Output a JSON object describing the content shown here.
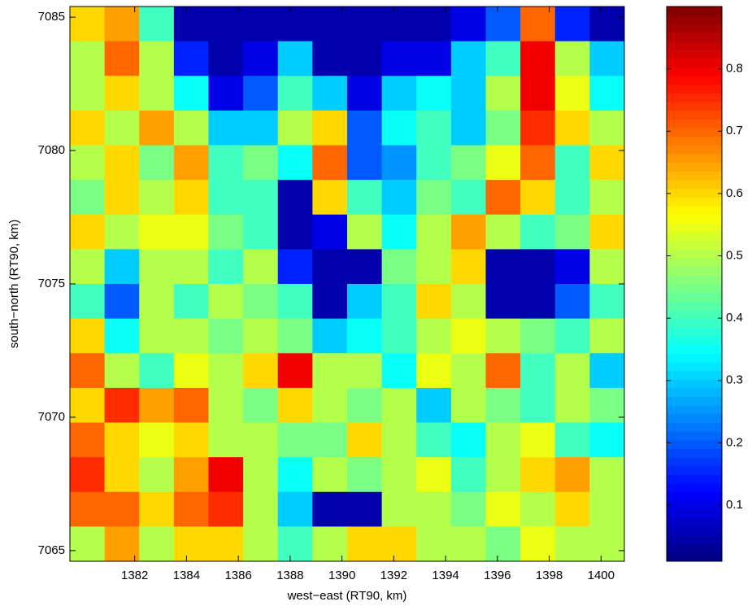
{
  "chart_data": {
    "type": "heatmap",
    "xlabel": "west−east (RT90, km)",
    "ylabel": "south−north (RT90, km)",
    "xlim": [
      1379.5,
      1400.9
    ],
    "ylim": [
      7064.6,
      7085.4
    ],
    "xticks": [
      1382,
      1384,
      1386,
      1388,
      1390,
      1392,
      1394,
      1396,
      1398,
      1400
    ],
    "yticks": [
      7065,
      7070,
      7075,
      7080,
      7085
    ],
    "clim": [
      0.01,
      0.9
    ],
    "cticks": [
      0.1,
      0.2,
      0.3,
      0.4,
      0.5,
      0.6,
      0.7,
      0.8
    ],
    "colormap": "jet",
    "z": [
      [
        0.6,
        0.65,
        0.4,
        0.05,
        0.05,
        0.05,
        0.05,
        0.05,
        0.05,
        0.05,
        0.05,
        0.1,
        0.2,
        0.7,
        0.15,
        0.05
      ],
      [
        0.5,
        0.7,
        0.5,
        0.15,
        0.05,
        0.1,
        0.3,
        0.05,
        0.05,
        0.1,
        0.1,
        0.3,
        0.4,
        0.8,
        0.5,
        0.3
      ],
      [
        0.5,
        0.6,
        0.5,
        0.35,
        0.1,
        0.2,
        0.4,
        0.3,
        0.1,
        0.3,
        0.35,
        0.3,
        0.5,
        0.8,
        0.55,
        0.35
      ],
      [
        0.6,
        0.5,
        0.65,
        0.5,
        0.3,
        0.3,
        0.5,
        0.6,
        0.2,
        0.35,
        0.4,
        0.3,
        0.45,
        0.75,
        0.6,
        0.5
      ],
      [
        0.5,
        0.6,
        0.45,
        0.65,
        0.4,
        0.45,
        0.35,
        0.7,
        0.2,
        0.25,
        0.4,
        0.45,
        0.55,
        0.7,
        0.4,
        0.6
      ],
      [
        0.45,
        0.6,
        0.5,
        0.6,
        0.4,
        0.4,
        0.05,
        0.6,
        0.4,
        0.3,
        0.45,
        0.4,
        0.7,
        0.6,
        0.4,
        0.5
      ],
      [
        0.6,
        0.5,
        0.55,
        0.55,
        0.45,
        0.4,
        0.05,
        0.1,
        0.5,
        0.35,
        0.5,
        0.65,
        0.5,
        0.4,
        0.45,
        0.6
      ],
      [
        0.5,
        0.3,
        0.5,
        0.5,
        0.4,
        0.5,
        0.15,
        0.05,
        0.05,
        0.45,
        0.5,
        0.6,
        0.05,
        0.05,
        0.1,
        0.5
      ],
      [
        0.4,
        0.2,
        0.5,
        0.4,
        0.5,
        0.45,
        0.4,
        0.05,
        0.3,
        0.4,
        0.6,
        0.5,
        0.05,
        0.05,
        0.2,
        0.4
      ],
      [
        0.6,
        0.35,
        0.5,
        0.5,
        0.45,
        0.5,
        0.45,
        0.3,
        0.35,
        0.4,
        0.5,
        0.55,
        0.5,
        0.45,
        0.4,
        0.5
      ],
      [
        0.7,
        0.5,
        0.4,
        0.55,
        0.5,
        0.6,
        0.8,
        0.5,
        0.5,
        0.35,
        0.55,
        0.5,
        0.7,
        0.4,
        0.5,
        0.3
      ],
      [
        0.6,
        0.75,
        0.65,
        0.7,
        0.5,
        0.45,
        0.6,
        0.5,
        0.45,
        0.5,
        0.3,
        0.5,
        0.45,
        0.4,
        0.5,
        0.45
      ],
      [
        0.7,
        0.6,
        0.55,
        0.6,
        0.5,
        0.5,
        0.45,
        0.45,
        0.6,
        0.5,
        0.4,
        0.35,
        0.5,
        0.55,
        0.4,
        0.35
      ],
      [
        0.75,
        0.6,
        0.5,
        0.65,
        0.8,
        0.5,
        0.35,
        0.5,
        0.45,
        0.5,
        0.55,
        0.4,
        0.5,
        0.6,
        0.65,
        0.5
      ],
      [
        0.7,
        0.7,
        0.6,
        0.7,
        0.75,
        0.5,
        0.3,
        0.05,
        0.05,
        0.5,
        0.5,
        0.45,
        0.55,
        0.5,
        0.6,
        0.5
      ],
      [
        0.5,
        0.65,
        0.5,
        0.6,
        0.6,
        0.5,
        0.4,
        0.5,
        0.6,
        0.6,
        0.5,
        0.5,
        0.45,
        0.55,
        0.5,
        0.5
      ]
    ]
  }
}
